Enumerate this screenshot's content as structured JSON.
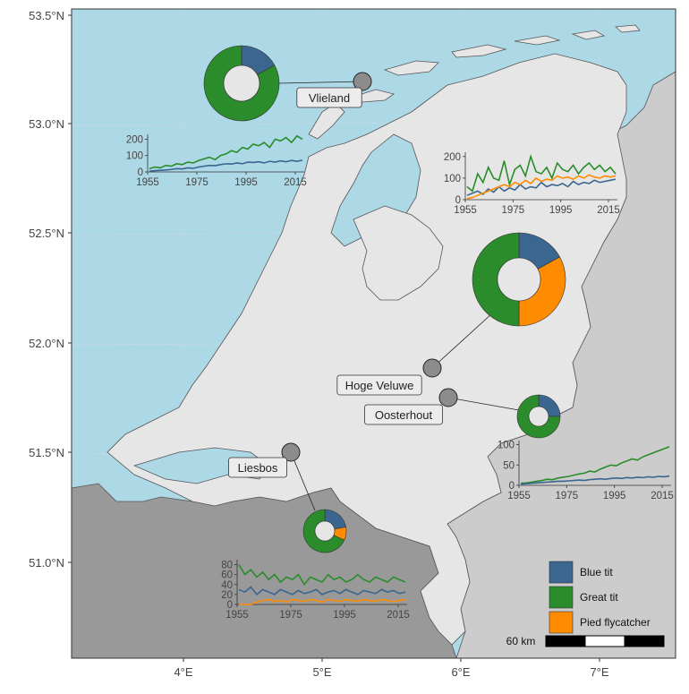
{
  "map": {
    "lat_labels": [
      "53.5°N",
      "53.0°N",
      "52.5°N",
      "52.0°N",
      "51.5°N",
      "51.0°N"
    ],
    "lon_labels": [
      "4°E",
      "5°E",
      "6°E",
      "7°E"
    ],
    "scale_bar": {
      "label": "60 km"
    },
    "colors": {
      "sea": "#ADD8E6",
      "land": "#E6E6E6",
      "neighbor_south": "#999999",
      "neighbor_east": "#CCCCCC"
    }
  },
  "legend": {
    "items": [
      {
        "label": "Blue tit",
        "color": "#3A6690"
      },
      {
        "label": "Great tit",
        "color": "#2A8C2A"
      },
      {
        "label": "Pied flycatcher",
        "color": "#FF8C00"
      }
    ]
  },
  "sites": [
    {
      "name": "Vlieland",
      "pie": {
        "blue": 0.17,
        "great": 0.83,
        "pied": 0
      }
    },
    {
      "name": "Hoge Veluwe",
      "pie": {
        "blue": 0.17,
        "great": 0.5,
        "pied": 0.33
      }
    },
    {
      "name": "Oosterhout",
      "pie": {
        "blue": 0.25,
        "great": 0.75,
        "pied": 0
      }
    },
    {
      "name": "Liesbos",
      "pie": {
        "blue": 0.22,
        "great": 0.68,
        "pied": 0.1
      }
    }
  ],
  "chart_data": [
    {
      "type": "line",
      "site": "Vlieland",
      "x_ticks": [
        "1955",
        "1975",
        "1995",
        "2015"
      ],
      "y_ticks": [
        "0",
        "100",
        "200"
      ],
      "ylim": [
        0,
        230
      ],
      "series": [
        {
          "name": "Great tit",
          "values": [
            20,
            30,
            25,
            40,
            35,
            50,
            45,
            60,
            55,
            70,
            80,
            90,
            75,
            100,
            110,
            130,
            120,
            150,
            140,
            170,
            160,
            180,
            150,
            200,
            190,
            210,
            180,
            220,
            200
          ]
        },
        {
          "name": "Blue tit",
          "values": [
            5,
            8,
            10,
            12,
            15,
            20,
            18,
            25,
            22,
            30,
            35,
            40,
            38,
            45,
            50,
            48,
            55,
            50,
            60,
            58,
            62,
            55,
            65,
            60,
            68,
            62,
            70,
            65,
            72
          ]
        }
      ]
    },
    {
      "type": "line",
      "site": "Hoge Veluwe",
      "x_ticks": [
        "1955",
        "1975",
        "1995",
        "2015"
      ],
      "y_ticks": [
        "0",
        "100",
        "200"
      ],
      "ylim": [
        0,
        220
      ],
      "series": [
        {
          "name": "Great tit",
          "values": [
            60,
            40,
            120,
            80,
            150,
            100,
            90,
            180,
            70,
            140,
            160,
            110,
            200,
            130,
            120,
            150,
            100,
            170,
            140,
            130,
            160,
            120,
            150,
            170,
            140,
            160,
            130,
            150,
            120
          ]
        },
        {
          "name": "Blue tit",
          "values": [
            20,
            30,
            40,
            25,
            50,
            35,
            60,
            40,
            55,
            45,
            70,
            50,
            60,
            55,
            80,
            60,
            70,
            65,
            75,
            60,
            85,
            70,
            80,
            75,
            90,
            80,
            85,
            90,
            95
          ]
        },
        {
          "name": "Pied flycatcher",
          "values": [
            5,
            10,
            20,
            30,
            40,
            50,
            60,
            70,
            60,
            80,
            70,
            90,
            75,
            100,
            85,
            95,
            90,
            110,
            100,
            105,
            95,
            110,
            100,
            115,
            105,
            100,
            110,
            105,
            110
          ]
        }
      ]
    },
    {
      "type": "line",
      "site": "Oosterhout",
      "x_ticks": [
        "1955",
        "1975",
        "1995",
        "2015"
      ],
      "y_ticks": [
        "0",
        "50",
        "100"
      ],
      "ylim": [
        0,
        110
      ],
      "series": [
        {
          "name": "Great tit",
          "values": [
            5,
            6,
            8,
            10,
            12,
            15,
            14,
            18,
            20,
            22,
            25,
            28,
            30,
            35,
            33,
            40,
            45,
            50,
            48,
            55,
            60,
            65,
            62,
            70,
            75,
            80,
            85,
            90,
            95
          ]
        },
        {
          "name": "Blue tit",
          "values": [
            3,
            4,
            5,
            6,
            7,
            8,
            9,
            10,
            10,
            11,
            12,
            13,
            12,
            14,
            15,
            16,
            15,
            17,
            18,
            17,
            19,
            18,
            20,
            19,
            21,
            20,
            22,
            21,
            23
          ]
        }
      ]
    },
    {
      "type": "line",
      "site": "Liesbos",
      "x_ticks": [
        "1955",
        "1975",
        "1995",
        "2015"
      ],
      "y_ticks": [
        "0",
        "20",
        "40",
        "60",
        "80"
      ],
      "ylim": [
        0,
        90
      ],
      "series": [
        {
          "name": "Great tit",
          "values": [
            80,
            60,
            70,
            55,
            65,
            50,
            60,
            45,
            55,
            50,
            60,
            40,
            55,
            50,
            45,
            60,
            50,
            55,
            45,
            50,
            60,
            50,
            45,
            55,
            50,
            45,
            55,
            50,
            45
          ]
        },
        {
          "name": "Blue tit",
          "values": [
            30,
            25,
            35,
            20,
            30,
            25,
            20,
            30,
            25,
            20,
            28,
            22,
            25,
            30,
            20,
            25,
            28,
            22,
            30,
            25,
            20,
            28,
            25,
            22,
            30,
            25,
            28,
            22,
            25
          ]
        },
        {
          "name": "Pied flycatcher",
          "values": [
            0,
            0,
            0,
            5,
            8,
            10,
            6,
            8,
            5,
            10,
            8,
            6,
            10,
            8,
            5,
            10,
            8,
            6,
            10,
            8,
            6,
            10,
            8,
            6,
            10,
            8,
            6,
            8,
            10
          ]
        }
      ]
    }
  ]
}
